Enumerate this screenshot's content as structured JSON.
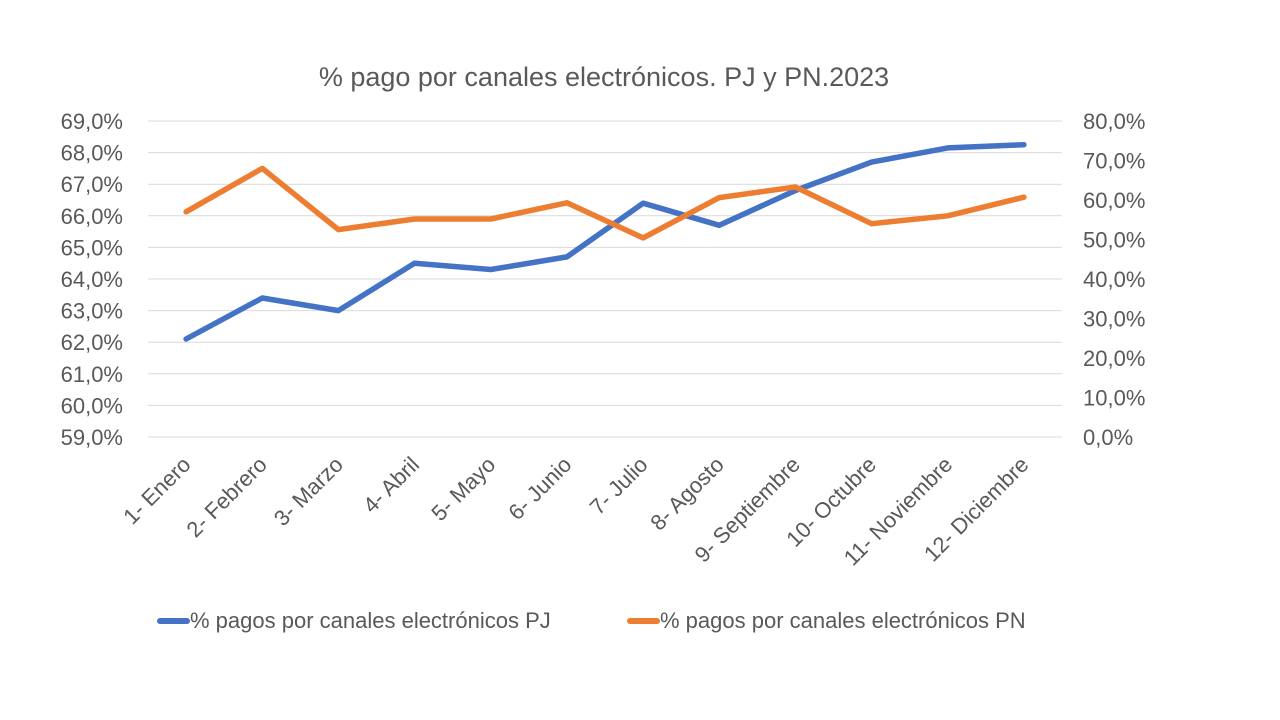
{
  "chart_data": {
    "type": "line",
    "title": "% pago por canales electrónicos. PJ y PN.2023",
    "categories": [
      "1- Enero",
      "2- Febrero",
      "3- Marzo",
      "4- Abril",
      "5- Mayo",
      "6- Junio",
      "7- Julio",
      "8- Agosto",
      "9- Septiembre",
      "10- Octubre",
      "11- Noviembre",
      "12- Diciembre"
    ],
    "y_left": {
      "min": 59,
      "max": 69,
      "step": 1,
      "tick_labels": [
        "59,0%",
        "60,0%",
        "61,0%",
        "62,0%",
        "63,0%",
        "64,0%",
        "65,0%",
        "66,0%",
        "67,0%",
        "68,0%",
        "69,0%"
      ]
    },
    "y_right": {
      "min": 0,
      "max": 80,
      "step": 10,
      "tick_labels": [
        "0,0%",
        "10,0%",
        "20,0%",
        "30,0%",
        "40,0%",
        "50,0%",
        "60,0%",
        "70,0%",
        "80,0%"
      ]
    },
    "grid": true,
    "legend_position": "bottom",
    "series": [
      {
        "name": "% pagos por canales electrónicos PJ",
        "axis": "left",
        "color": "#4472C4",
        "values": [
          62.1,
          63.4,
          63.0,
          64.5,
          64.3,
          64.7,
          66.4,
          65.7,
          66.8,
          67.7,
          68.15,
          68.25
        ]
      },
      {
        "name": "% pagos por canales electrónicos PN",
        "axis": "right",
        "color": "#ED7D31",
        "values": [
          57.0,
          68.0,
          52.5,
          55.2,
          55.2,
          59.3,
          50.4,
          60.6,
          63.3,
          54.0,
          56.0,
          60.7
        ]
      }
    ]
  }
}
